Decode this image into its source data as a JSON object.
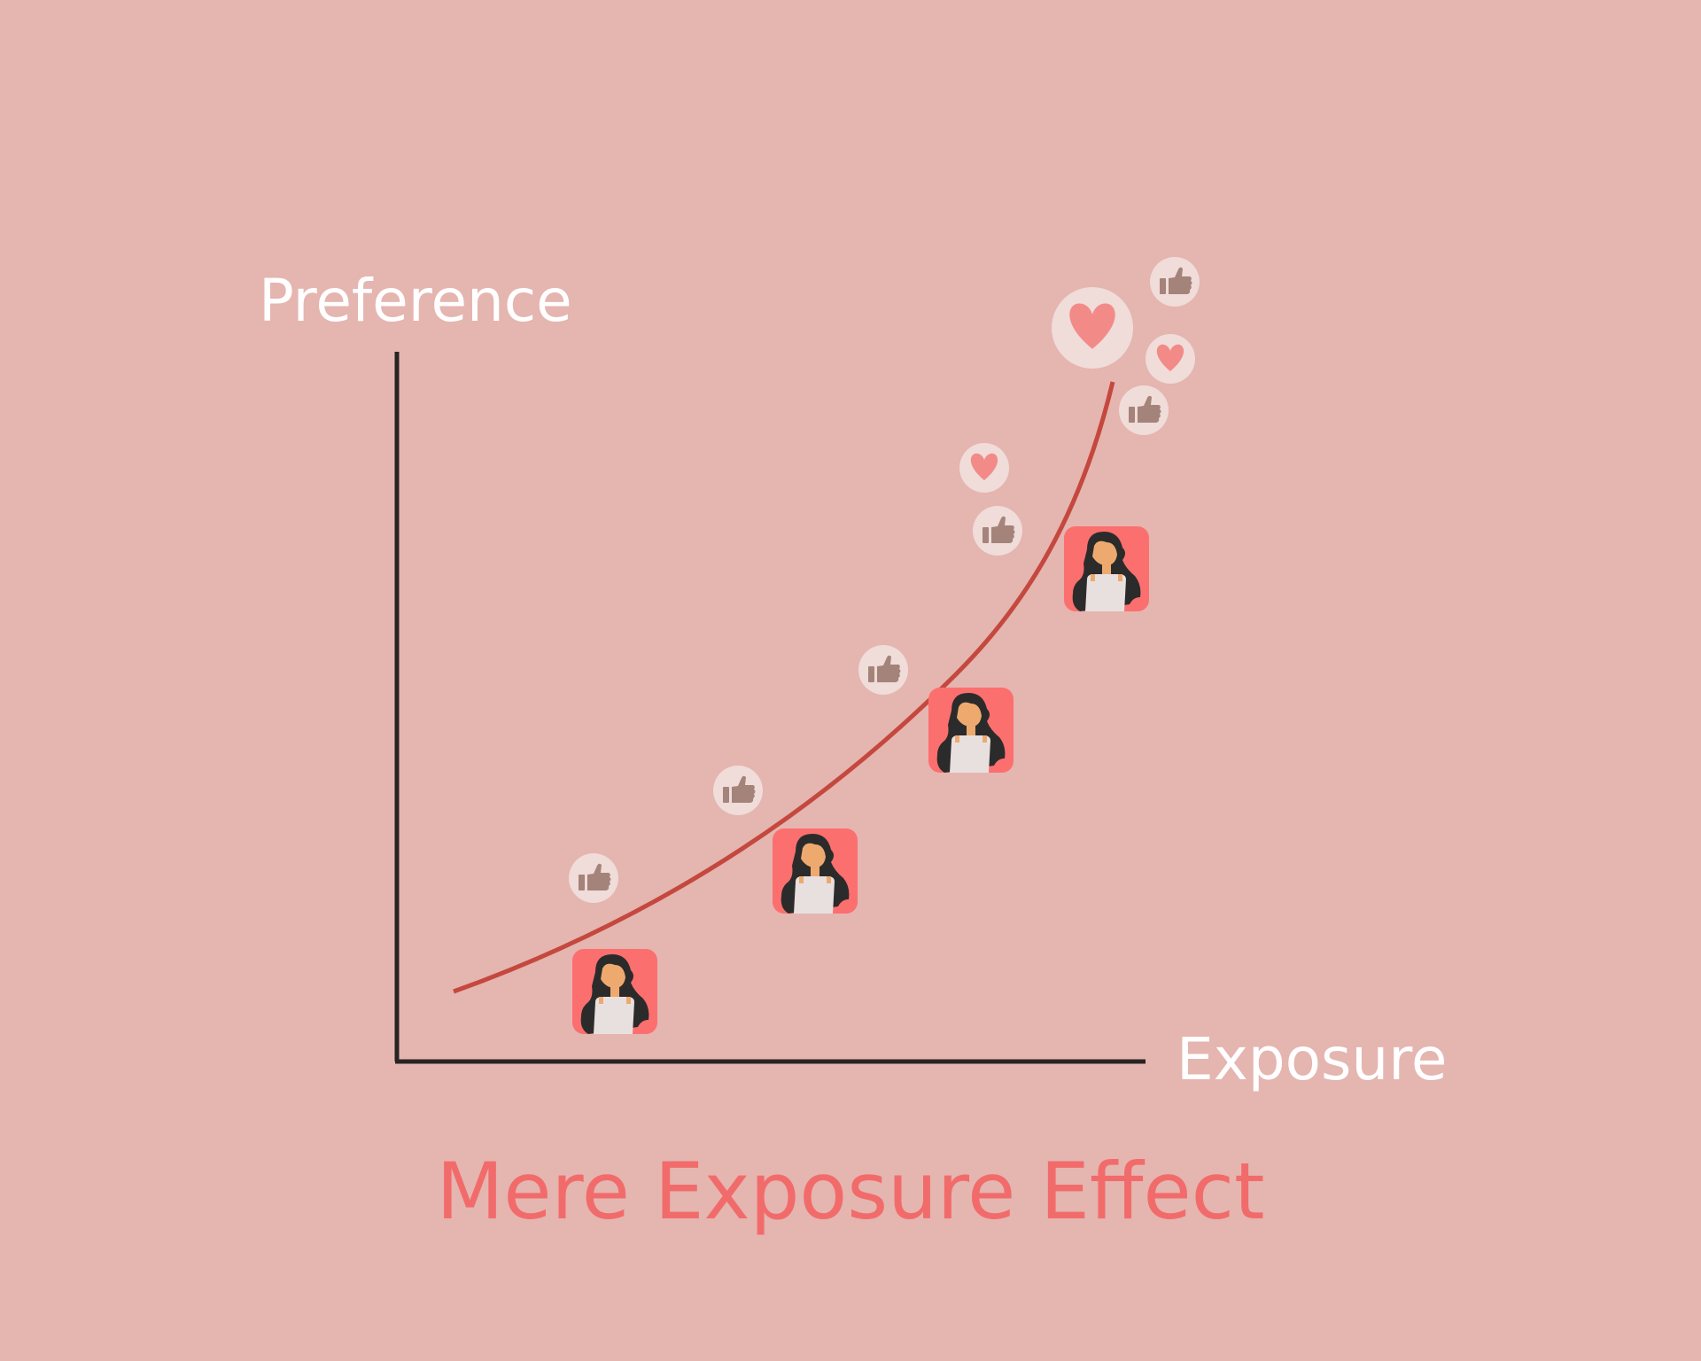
{
  "labels": {
    "y_axis": "Preference",
    "x_axis": "Exposure",
    "title": "Mere Exposure Effect"
  },
  "colors": {
    "background": "#e5b5b0",
    "axis": "#2a2323",
    "axis_text": "#ffffff",
    "title": "#f26b6b",
    "curve": "#c5483e",
    "person_tile": "#fc6f6f",
    "bubble": "#f0dcd9",
    "thumb": "#a4837b",
    "heart": "#f28b88"
  },
  "icons": {
    "person": "woman-avatar-icon",
    "like": "thumbs-up-icon",
    "love": "heart-icon"
  }
}
